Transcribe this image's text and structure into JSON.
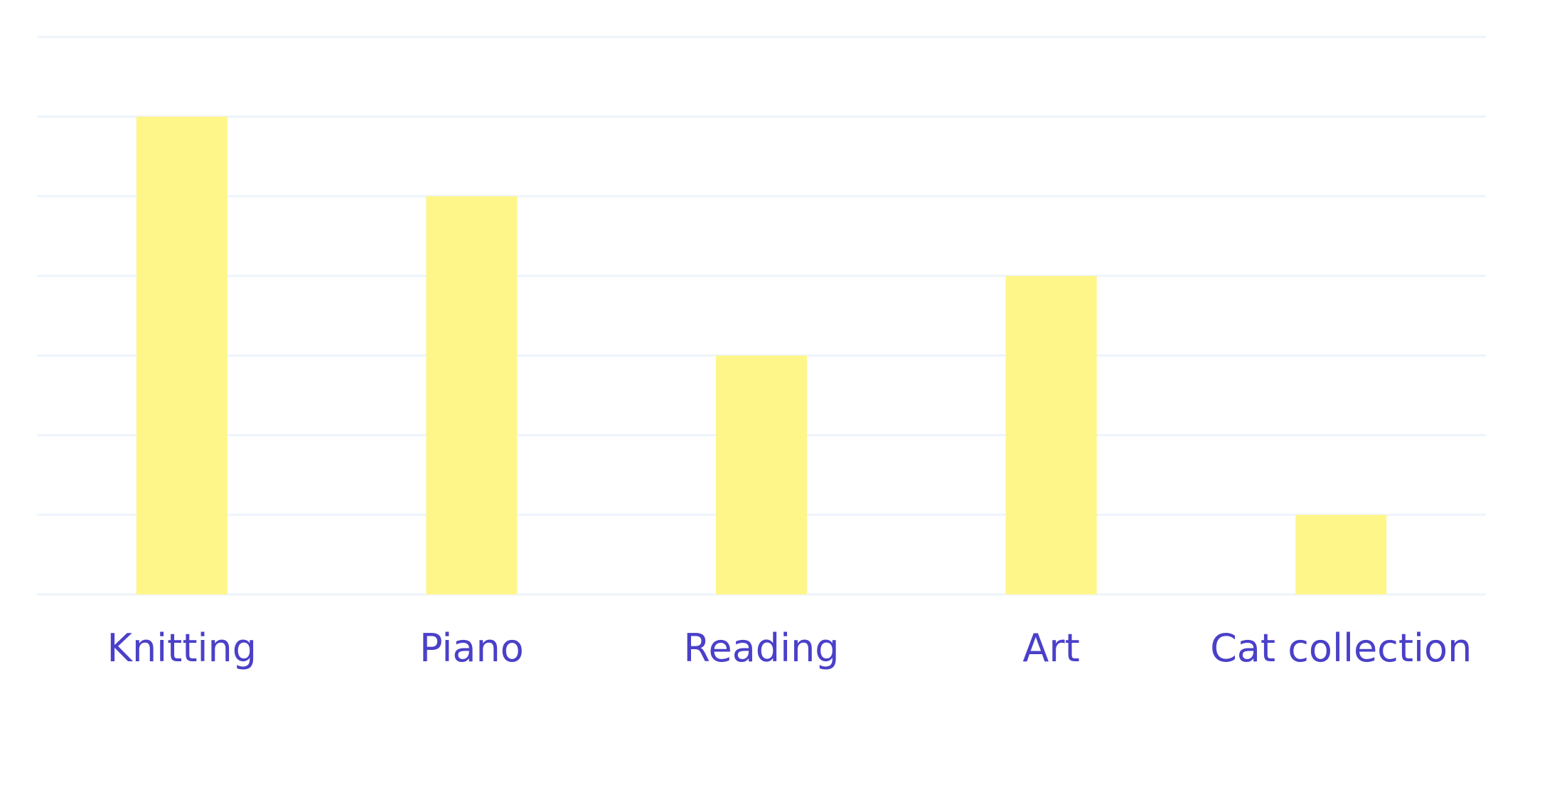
{
  "chart_data": {
    "type": "bar",
    "title": "",
    "xlabel": "",
    "ylabel": "",
    "categories": [
      "Knitting",
      "Piano",
      "Reading",
      "Art",
      "Cat collection"
    ],
    "values": [
      6,
      5,
      3,
      4,
      1
    ],
    "ylim": [
      0,
      7
    ],
    "grid": true,
    "legend": "none",
    "colors": {
      "bar": "#fff68a",
      "grid": "#edf4fb",
      "label": "#4a40c8",
      "background": "#ffffff"
    }
  }
}
